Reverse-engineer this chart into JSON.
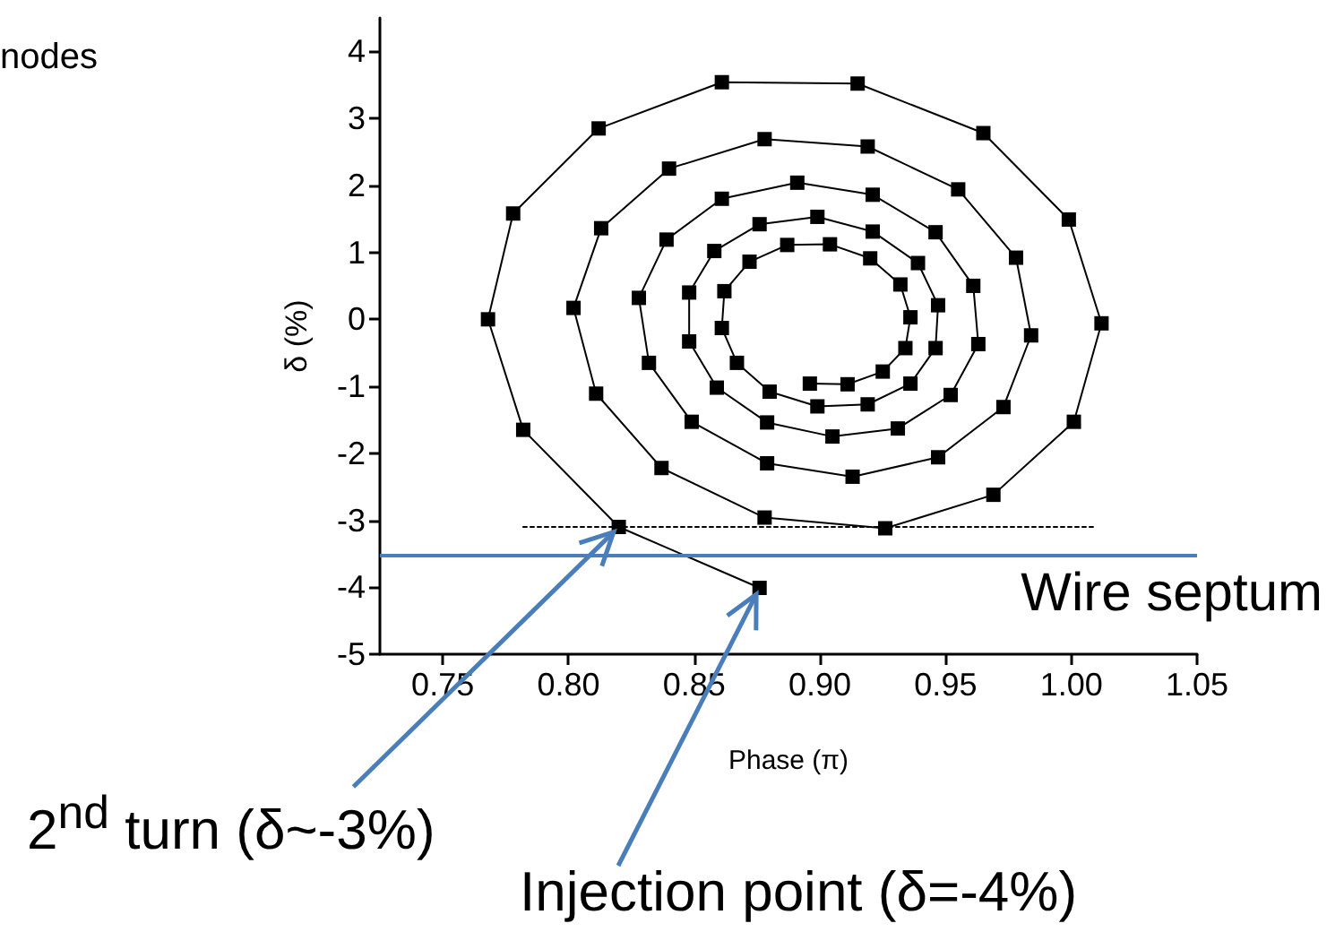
{
  "chart_data": {
    "type": "line",
    "xlabel": "Phase (π)",
    "ylabel": "δ (%)",
    "xlim": [
      0.725,
      1.05
    ],
    "xticks": [
      0.75,
      {
        "value": 0.8,
        "label": "0.80"
      },
      0.85,
      {
        "value": 0.9,
        "label": "0.90"
      },
      0.95,
      {
        "value": 1.0,
        "label": "1.00"
      },
      1.05
    ],
    "ylim": [
      -5,
      4.5
    ],
    "yticks": [
      -5,
      -4,
      -3,
      -2,
      -1,
      0,
      1,
      2,
      3,
      4
    ],
    "grid": false,
    "marker": "square",
    "line_style": "solid",
    "series": [
      {
        "color": "#000000",
        "x": [
          0.876,
          0.82,
          0.782,
          0.768,
          0.778,
          0.812,
          0.861,
          0.915,
          0.965,
          0.999,
          1.012,
          1.001,
          0.969,
          0.926,
          0.878,
          0.837,
          0.811,
          0.802,
          0.813,
          0.84,
          0.878,
          0.919,
          0.955,
          0.978,
          0.984,
          0.973,
          0.947,
          0.913,
          0.879,
          0.849,
          0.832,
          0.828,
          0.839,
          0.861,
          0.891,
          0.921,
          0.946,
          0.961,
          0.963,
          0.952,
          0.931,
          0.905,
          0.879,
          0.859,
          0.848,
          0.848,
          0.858,
          0.876,
          0.899,
          0.921,
          0.939,
          0.947,
          0.946,
          0.936,
          0.919,
          0.899,
          0.88,
          0.867,
          0.861,
          0.862,
          0.872,
          0.887,
          0.904,
          0.92,
          0.932,
          0.936,
          0.934,
          0.925,
          0.911,
          0.896
        ],
        "values": [
          -4.01,
          -3.1,
          -1.65,
          0.0,
          1.58,
          2.85,
          3.54,
          3.52,
          2.78,
          1.49,
          -0.06,
          -1.53,
          -2.62,
          -3.12,
          -2.96,
          -2.22,
          -1.11,
          0.17,
          1.36,
          2.25,
          2.69,
          2.58,
          1.94,
          0.92,
          -0.24,
          -1.31,
          -2.06,
          -2.35,
          -2.15,
          -1.53,
          -0.65,
          0.32,
          1.19,
          1.8,
          2.04,
          1.86,
          1.3,
          0.5,
          -0.37,
          -1.13,
          -1.63,
          -1.75,
          -1.54,
          -1.02,
          -0.33,
          0.4,
          1.02,
          1.42,
          1.53,
          1.31,
          0.84,
          0.21,
          -0.43,
          -0.96,
          -1.27,
          -1.3,
          -1.08,
          -0.65,
          -0.13,
          0.42,
          0.86,
          1.11,
          1.12,
          0.91,
          0.52,
          0.03,
          -0.43,
          -0.78,
          -0.97,
          -0.96
        ]
      },
      {
        "color": "#000000",
        "x": [
          0.782,
          1.01
        ],
        "values": [
          -3.1,
          -3.1
        ],
        "marker": "none",
        "line_style": "dotted"
      }
    ],
    "ref_lines": [
      {
        "axis": "y",
        "value": -3.53,
        "label": "Wire septum",
        "color": "#4a7ebb",
        "line_style": "solid"
      }
    ],
    "annotations": [
      "nodes",
      {
        "text": "2$^{nd}$ turn (δ~-3%)",
        "x": 0.82,
        "y": -3.1
      },
      {
        "text": "Injection point (δ=-4%)",
        "x": 0.876,
        "y": -4.01
      }
    ]
  }
}
